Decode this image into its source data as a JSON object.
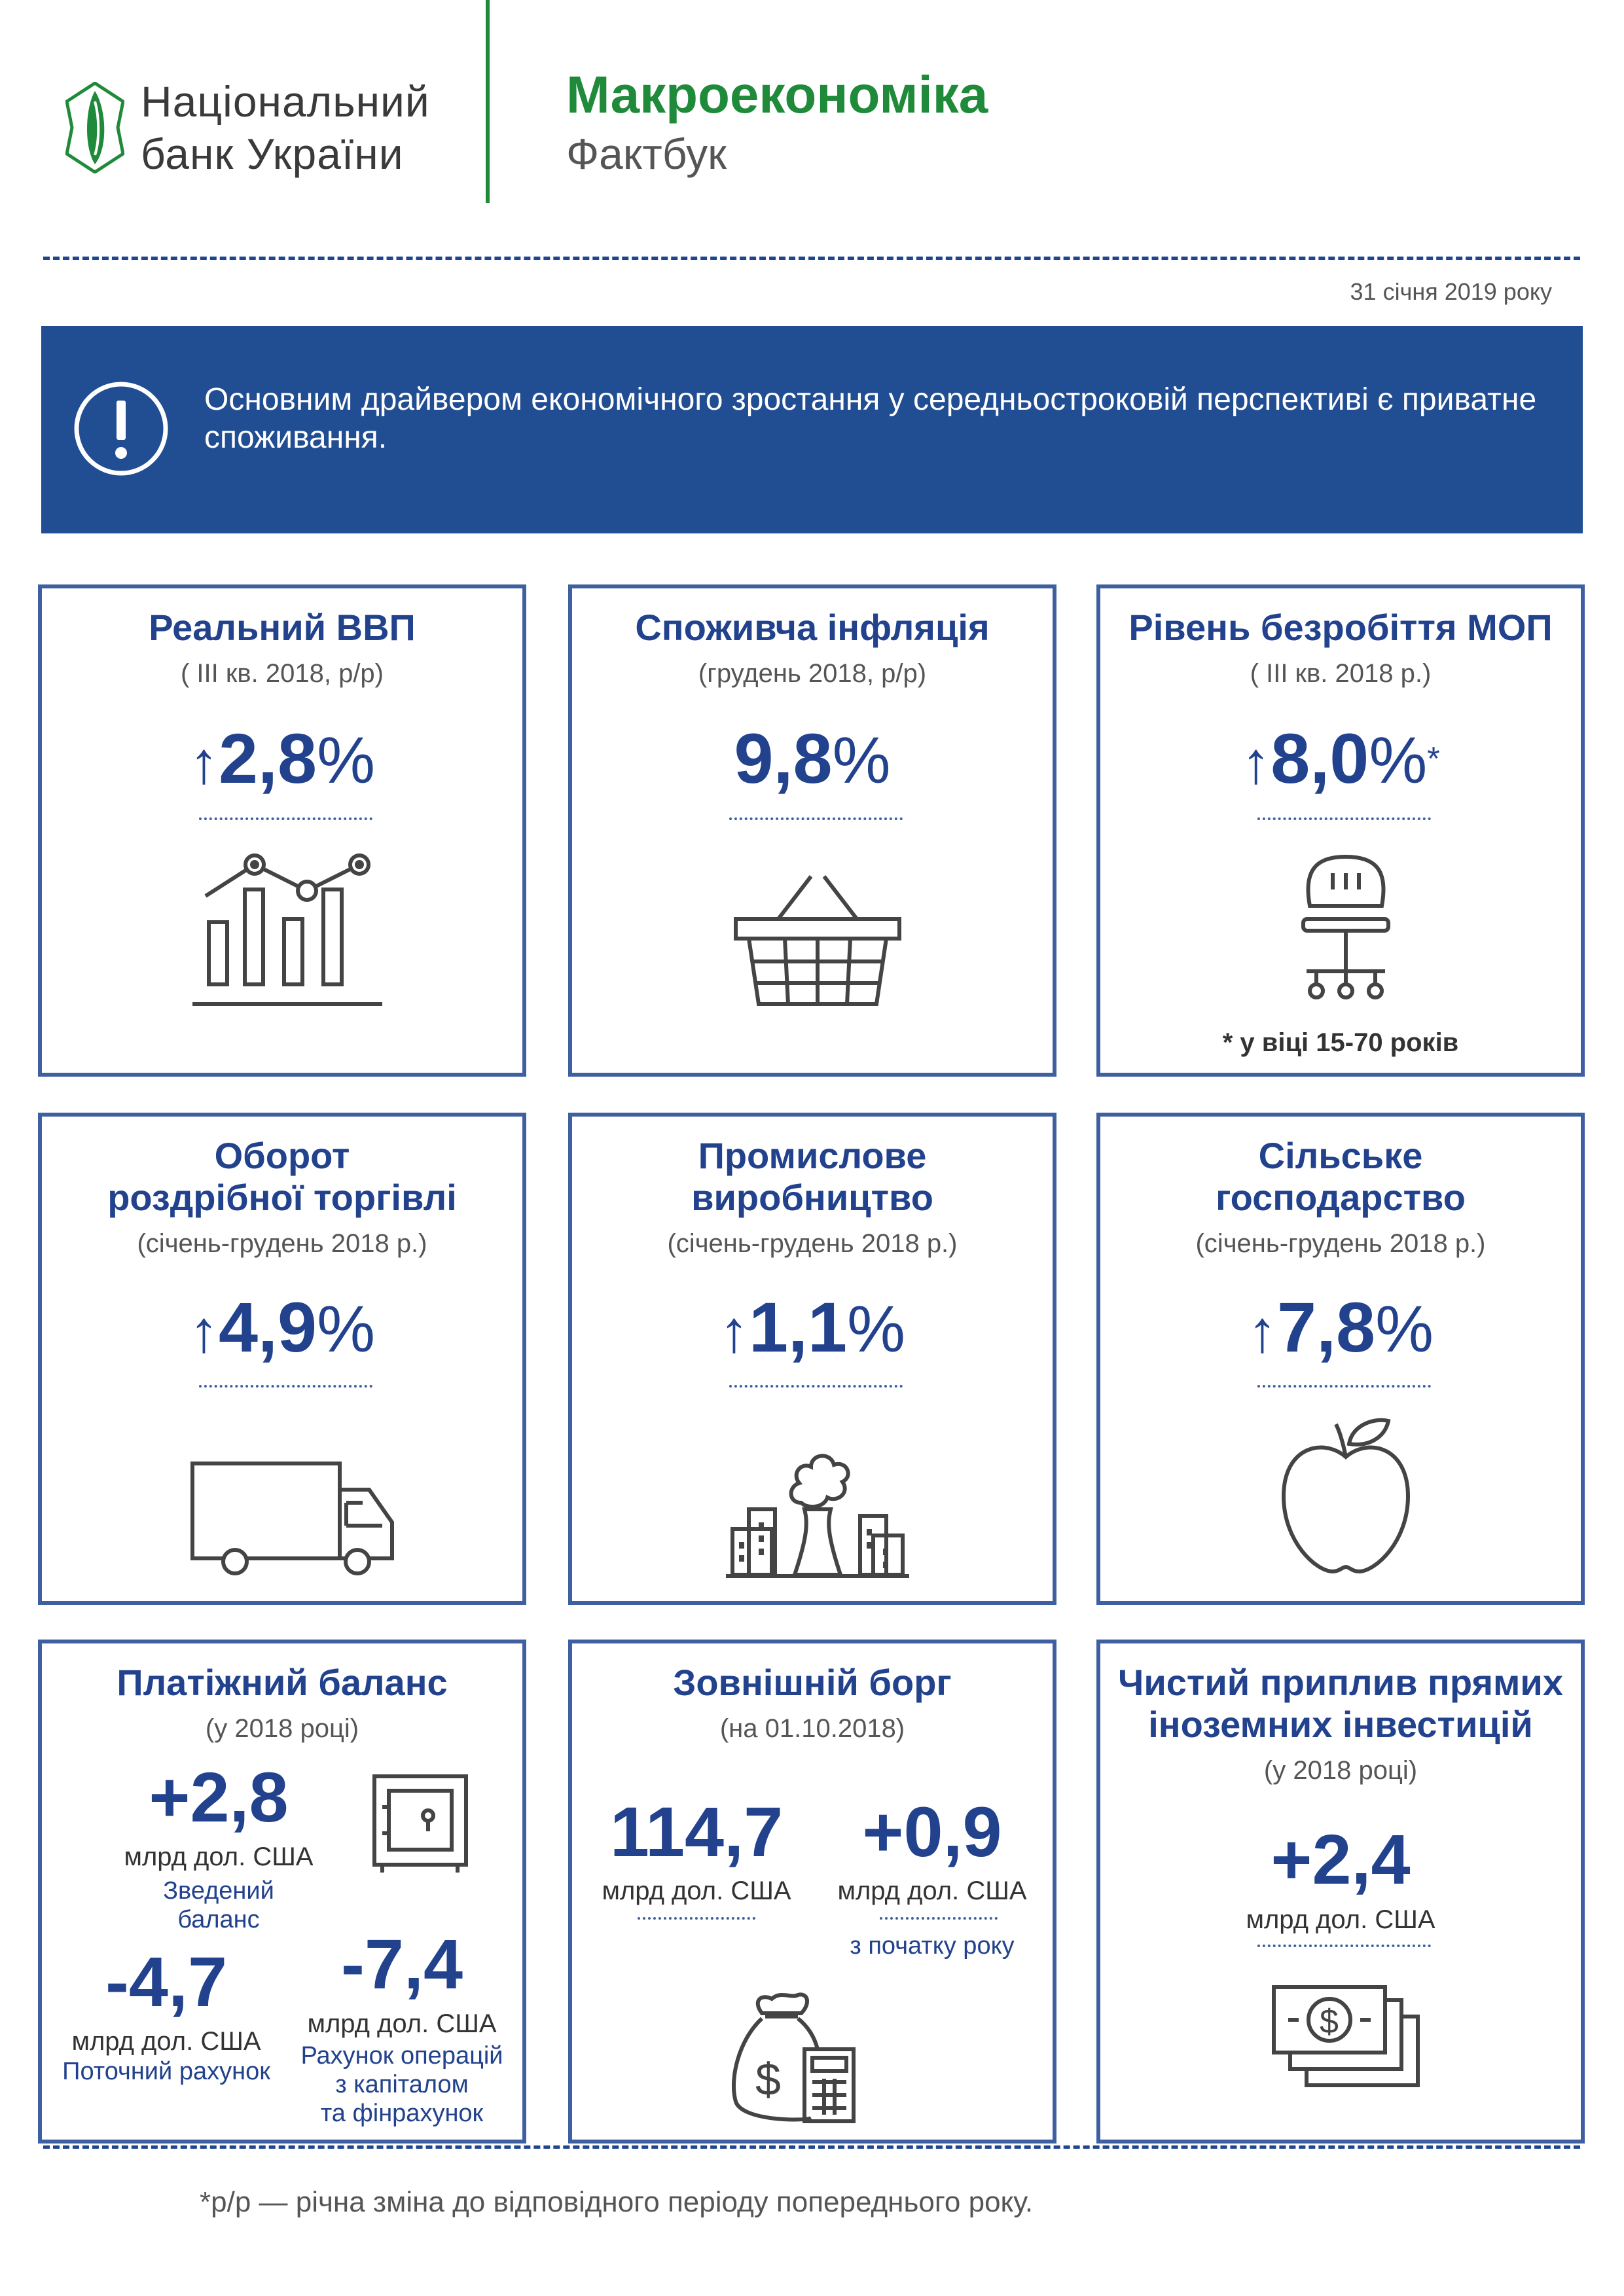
{
  "header": {
    "bank_name_line1": "Національний",
    "bank_name_line2": "банк України",
    "title": "Макроекономіка",
    "subtitle": "Фактбук",
    "date": "31 січня 2019 року"
  },
  "alert": {
    "icon": "exclamation-icon",
    "text": "Основним драйвером економічного зростання у середньостроковій перспективі є приватне споживання."
  },
  "colors": {
    "brand_green": "#1e8a3a",
    "navy": "#214d92",
    "card_border": "#3e60a0",
    "value_blue": "#22428d"
  },
  "cards": {
    "gdp": {
      "title": "Реальний ВВП",
      "period": "( III кв. 2018, р/р)",
      "arrow": "↑",
      "value": "2,8",
      "unit": "%",
      "icon": "chart-icon"
    },
    "inflation": {
      "title": "Споживча інфляція",
      "period": "(грудень 2018, р/р)",
      "value": "9,8",
      "unit": "%",
      "icon": "basket-icon"
    },
    "unemployment": {
      "title": "Рівень безробіття МОП",
      "period": "( III кв. 2018 р.)",
      "arrow": "↑",
      "value": "8,0",
      "unit": "%",
      "star": "*",
      "note": "* у віці 15-70 років",
      "icon": "office-chair-icon"
    },
    "retail": {
      "title_line1": "Оборот",
      "title_line2": "роздрібної торгівлі",
      "period": "(січень-грудень 2018 р.)",
      "arrow": "↑",
      "value": "4,9",
      "unit": "%",
      "icon": "truck-icon"
    },
    "industry": {
      "title_line1": "Промислове",
      "title_line2": "виробництво",
      "period": "(січень-грудень 2018 р.)",
      "arrow": "↑",
      "value": "1,1",
      "unit": "%",
      "icon": "factory-icon"
    },
    "agriculture": {
      "title_line1": "Сільське",
      "title_line2": "господарство",
      "period": "(січень-грудень 2018 р.)",
      "arrow": "↑",
      "value": "7,8",
      "unit": "%",
      "icon": "apple-icon"
    },
    "balance": {
      "title": "Платіжний баланс",
      "period": "(у 2018 році)",
      "overall_value": "+2,8",
      "overall_unit": "млрд дол. США",
      "overall_label_line1": "Зведений",
      "overall_label_line2": "баланс",
      "current_value": "-4,7",
      "current_unit": "млрд дол. США",
      "current_label": "Поточний рахунок",
      "capital_value": "-7,4",
      "capital_unit": "млрд дол. США",
      "capital_label_line1": "Рахунок операцій",
      "capital_label_line2": "з капіталом",
      "capital_label_line3": "та фінрахунок",
      "icon": "safe-icon"
    },
    "debt": {
      "title": "Зовнішній борг",
      "period": "(на 01.10.2018)",
      "total_value": "114,7",
      "total_unit": "млрд дол. США",
      "change_value": "+0,9",
      "change_unit": "млрд дол. США",
      "change_label": "з початку року",
      "icon": "money-bag-calculator-icon"
    },
    "fdi": {
      "title_line1": "Чистий приплив прямих",
      "title_line2": "іноземних інвестицій",
      "period": "(у 2018 році)",
      "value": "+2,4",
      "unit": "млрд дол. США",
      "icon": "banknotes-icon"
    }
  },
  "footnote": "*р/р — річна зміна до відповідного періоду попереднього року."
}
